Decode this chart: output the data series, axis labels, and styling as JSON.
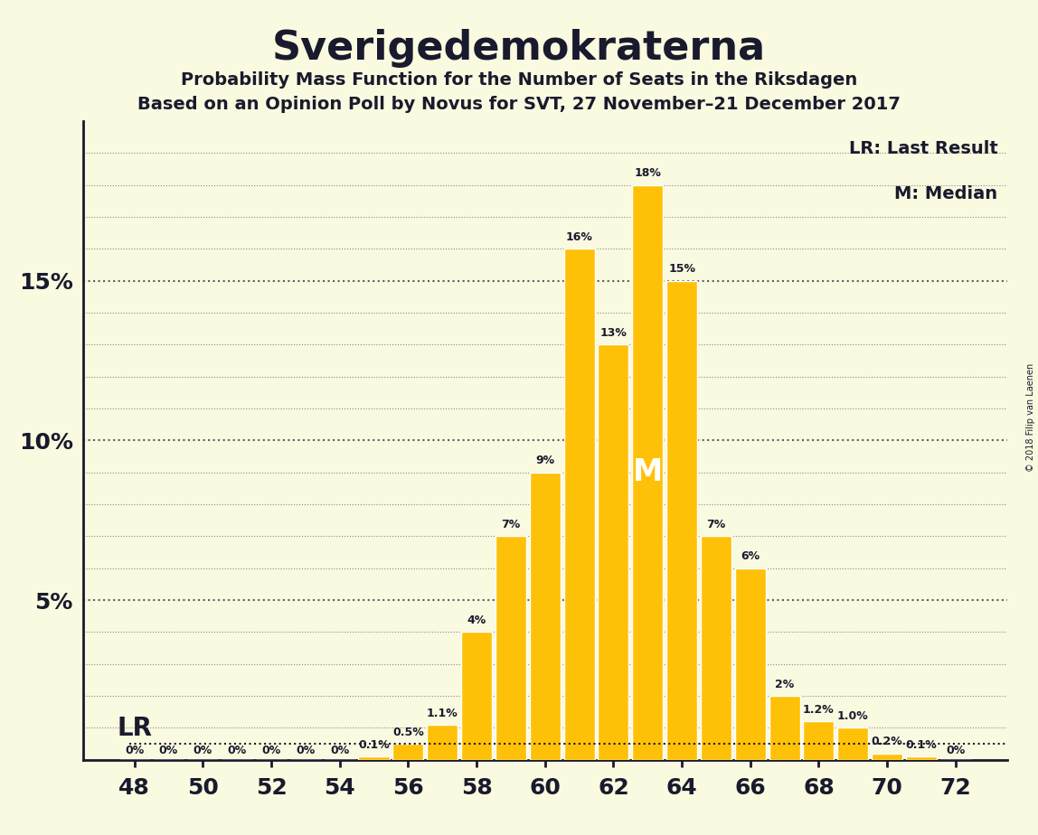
{
  "title": "Sverigedemokraterna",
  "subtitle1": "Probability Mass Function for the Number of Seats in the Riksdagen",
  "subtitle2": "Based on an Opinion Poll by Novus for SVT, 27 November–21 December 2017",
  "copyright": "© 2018 Filip van Laenen",
  "lr_label": "LR: Last Result",
  "m_label": "M: Median",
  "seats": [
    48,
    49,
    50,
    51,
    52,
    53,
    54,
    55,
    56,
    57,
    58,
    59,
    60,
    61,
    62,
    63,
    64,
    65,
    66,
    67,
    68,
    69,
    70,
    71,
    72
  ],
  "values": [
    0.0,
    0.0,
    0.0,
    0.0,
    0.0,
    0.0,
    0.0,
    0.1,
    0.5,
    1.1,
    4.0,
    7.0,
    9.0,
    16.0,
    13.0,
    18.0,
    15.0,
    7.0,
    6.0,
    2.0,
    1.2,
    1.0,
    0.2,
    0.1,
    0.0
  ],
  "bar_color": "#FFC107",
  "background_color": "#FAFAE0",
  "text_color": "#1a1a2e",
  "lr_seat": 49,
  "lr_value": 0.0,
  "median_seat": 63,
  "xlim_left": 46.5,
  "xlim_right": 73.5,
  "ylim_top": 20.0,
  "xticks": [
    48,
    50,
    52,
    54,
    56,
    58,
    60,
    62,
    64,
    66,
    68,
    70,
    72
  ],
  "ytick_positions": [
    5,
    10,
    15
  ],
  "ytick_labels": [
    "5%",
    "10%",
    "15%"
  ]
}
